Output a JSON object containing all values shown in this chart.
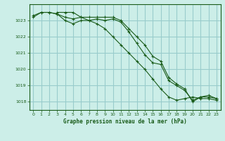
{
  "title": "Graphe pression niveau de la mer (hPa)",
  "background_color": "#cceee8",
  "grid_color": "#99cccc",
  "line_color": "#1a5c1a",
  "ylim": [
    1017.5,
    1024.0
  ],
  "xlim": [
    -0.5,
    23.5
  ],
  "yticks": [
    1018,
    1019,
    1020,
    1021,
    1022,
    1023
  ],
  "xticks": [
    0,
    1,
    2,
    3,
    4,
    5,
    6,
    7,
    8,
    9,
    10,
    11,
    12,
    13,
    14,
    15,
    16,
    17,
    18,
    19,
    20,
    21,
    22,
    23
  ],
  "series": [
    [
      1023.3,
      1023.5,
      1023.5,
      1023.4,
      1023.2,
      1023.1,
      1023.2,
      1023.2,
      1023.2,
      1023.2,
      1023.2,
      1023.0,
      1022.5,
      1022.0,
      1021.5,
      1020.8,
      1020.5,
      1019.5,
      1019.1,
      1018.8,
      1018.0,
      1018.3,
      1018.3,
      1018.2
    ],
    [
      1023.5,
      1023.5,
      1023.5,
      1023.2,
      1023.0,
      1022.8,
      1022.5,
      1022.0,
      1021.5,
      1021.0,
      1020.5,
      1020.0,
      1019.4,
      1018.8,
      1018.3,
      1018.1,
      1018.2,
      1018.3,
      1018.2,
      1018.2,
      1018.1
    ],
    [
      1023.2,
      1023.5,
      1023.5,
      1023.4,
      1023.0,
      1022.8,
      1023.0,
      1023.0,
      1023.1,
      1023.0,
      1023.1,
      1022.9,
      1022.3,
      1021.6,
      1020.9,
      1020.4,
      1020.3,
      1019.3,
      1019.0,
      1018.7,
      1018.1,
      1018.3,
      1018.4,
      1018.2
    ]
  ],
  "series_x": [
    [
      0,
      1,
      2,
      3,
      4,
      5,
      6,
      7,
      8,
      9,
      10,
      11,
      12,
      13,
      14,
      15,
      16,
      17,
      18,
      19,
      20,
      21,
      22,
      23
    ],
    [
      3,
      4,
      5,
      6,
      7,
      8,
      9,
      10,
      11,
      12,
      13,
      14,
      15,
      16,
      17,
      18,
      19,
      20,
      21,
      22,
      23
    ],
    [
      0,
      1,
      2,
      3,
      4,
      5,
      6,
      7,
      8,
      9,
      10,
      11,
      12,
      13,
      14,
      15,
      16,
      17,
      18,
      19,
      20,
      21,
      22,
      23
    ]
  ]
}
